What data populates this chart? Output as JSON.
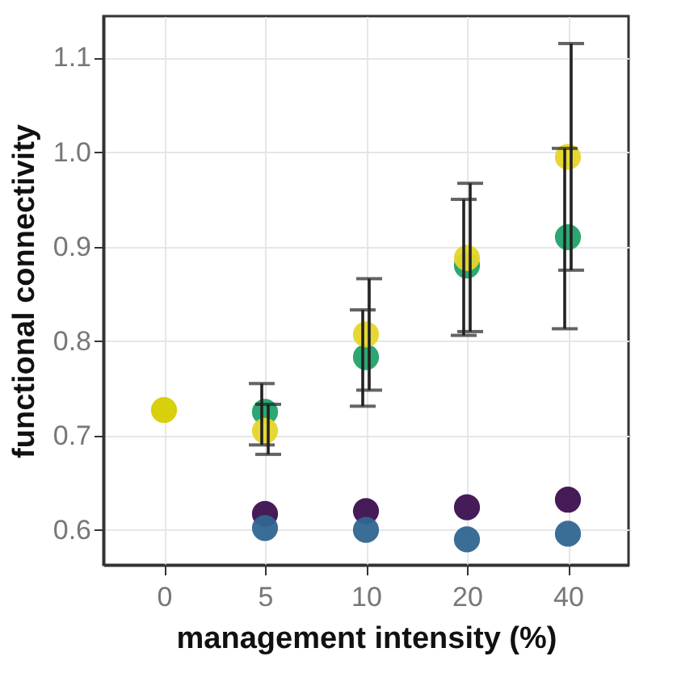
{
  "chart_data": {
    "type": "scatter",
    "xlabel": "management intensity (%)",
    "ylabel": "functional connectivity",
    "categories": [
      "0",
      "5",
      "10",
      "20",
      "40"
    ],
    "series": [
      {
        "color": "#d6cc00",
        "values": [
          0.727,
          null,
          null,
          null,
          null
        ]
      },
      {
        "color": "#21a26a",
        "values": [
          null,
          0.725,
          0.783,
          0.88,
          0.91
        ],
        "errors": [
          null,
          [
            0.69,
            0.755
          ],
          [
            0.731,
            0.833
          ],
          [
            0.806,
            0.95
          ],
          [
            0.813,
            1.004
          ]
        ]
      },
      {
        "color": "#e6d52a",
        "values": [
          null,
          0.705,
          0.807,
          0.888,
          0.995
        ],
        "errors": [
          null,
          [
            0.68,
            0.733
          ],
          [
            0.748,
            0.866
          ],
          [
            0.81,
            0.967
          ],
          [
            0.875,
            1.115
          ]
        ]
      },
      {
        "color": "#3b0f4f",
        "values": [
          null,
          0.617,
          0.62,
          0.624,
          0.632
        ]
      },
      {
        "color": "#2f6690",
        "values": [
          null,
          0.602,
          0.6,
          0.59,
          0.596
        ]
      }
    ],
    "ylim": [
      0.563,
      1.144
    ],
    "yticks": [
      0.6,
      0.7,
      0.8,
      0.9,
      {
        "value": 1,
        "label": "1.0"
      },
      1.1
    ],
    "grid": true,
    "legend": false,
    "marker": "circle"
  }
}
